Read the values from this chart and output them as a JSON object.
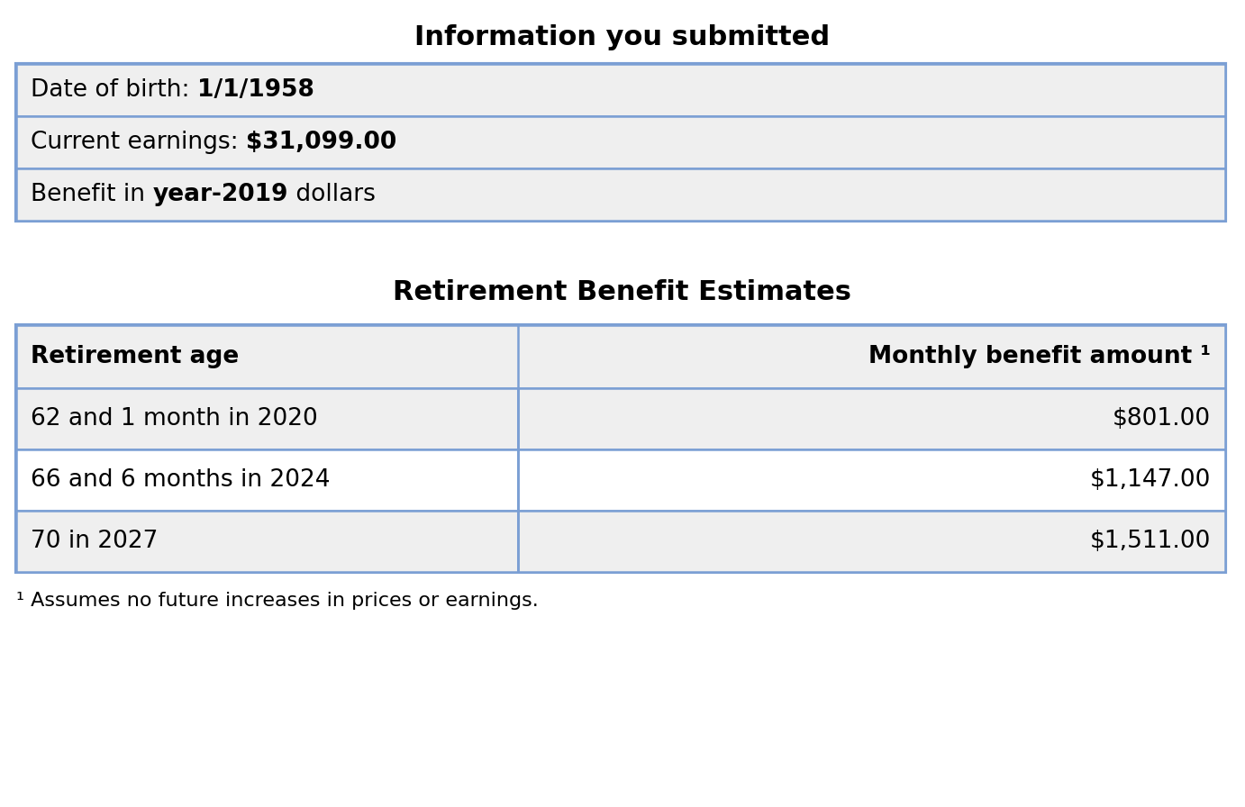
{
  "title1": "Information you submitted",
  "info_rows": [
    {
      "text_plain": "Date of birth: ",
      "text_bold": "1/1/1958",
      "text_plain2": ""
    },
    {
      "text_plain": "Current earnings: ",
      "text_bold": "$31,099.00",
      "text_plain2": ""
    },
    {
      "text_plain": "Benefit in ",
      "text_bold": "year-2019",
      "text_plain2": " dollars"
    }
  ],
  "title2": "Retirement Benefit Estimates",
  "table_header_left": "Retirement age",
  "table_header_right": "Monthly benefit amount ¹",
  "table_rows": [
    [
      "62 and 1 month in 2020",
      "$801.00"
    ],
    [
      "66 and 6 months in 2024",
      "$1,147.00"
    ],
    [
      "70 in 2027",
      "$1,511.00"
    ]
  ],
  "footnote": "¹ Assumes no future increases in prices or earnings.",
  "border_color": "#7B9FD4",
  "bg_color": "#EFEFEF",
  "white": "#FFFFFF",
  "text_color": "#000000",
  "title1_fontsize": 22,
  "title2_fontsize": 22,
  "header_fontsize": 19,
  "body_fontsize": 19,
  "footnote_fontsize": 16,
  "fig_width": 13.82,
  "fig_height": 8.96,
  "dpi": 100
}
